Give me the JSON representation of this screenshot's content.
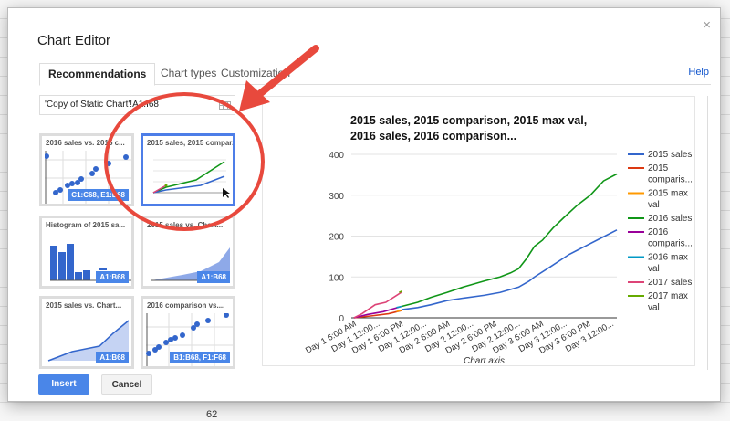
{
  "background": {
    "cell_value": "62"
  },
  "dialog": {
    "title": "Chart Editor",
    "close": "×",
    "help": "Help",
    "tabs": [
      "Recommendations",
      "Chart types",
      "Customization"
    ],
    "range": "'Copy of Static Chart'!A1:I68",
    "thumbnails": [
      {
        "title": "2016 sales vs. 2015 c...",
        "range": "C1:C68, E1:E68",
        "kind": "scatter"
      },
      {
        "title": "2015 sales, 2015 compar...",
        "range": "",
        "kind": "line",
        "selected": true
      },
      {
        "title": "Histogram of 2015 sa...",
        "range": "A1:B68",
        "kind": "histogram"
      },
      {
        "title": "2015 sales vs. Chart...",
        "range": "A1:B68",
        "kind": "column"
      },
      {
        "title": "2015 sales vs. Chart...",
        "range": "A1:B68",
        "kind": "area"
      },
      {
        "title": "2016 comparison vs....",
        "range": "B1:B68, F1:F68",
        "kind": "scatter"
      }
    ],
    "insert": "Insert",
    "cancel": "Cancel"
  },
  "chart_data": {
    "type": "line",
    "title_lines": [
      "2015 sales, 2015 comparison, 2015 max val,",
      "2016 sales, 2016 comparison..."
    ],
    "xlabel": "Chart axis",
    "ylabel": "",
    "ylim": [
      0,
      400
    ],
    "yticks": [
      "0",
      "100",
      "200",
      "300",
      "400"
    ],
    "xlim": [
      0,
      1
    ],
    "categories": [
      "Day 1 6:00 AM",
      "Day 1 12:00...",
      "Day 1 6:00 PM",
      "Day 1 12:00...",
      "Day 2 6:00 AM",
      "Day 2 12:00...",
      "Day 2 6:00 PM",
      "Day 2 12:00...",
      "Day 3 6:00 AM",
      "Day 3 12:00...",
      "Day 3 6:00 PM",
      "Day 3 12:00..."
    ],
    "legend_position": "right",
    "series": [
      {
        "name": "2015 sales",
        "legend": [
          "2015 sales"
        ],
        "color": "#3366cc",
        "points": [
          [
            0.19,
            20
          ],
          [
            0.25,
            25
          ],
          [
            0.3,
            32
          ],
          [
            0.36,
            42
          ],
          [
            0.42,
            48
          ],
          [
            0.5,
            55
          ],
          [
            0.56,
            62
          ],
          [
            0.63,
            75
          ],
          [
            0.67,
            90
          ],
          [
            0.69,
            100
          ],
          [
            0.75,
            125
          ],
          [
            0.82,
            155
          ],
          [
            0.88,
            175
          ],
          [
            0.94,
            195
          ],
          [
            1.0,
            215
          ]
        ]
      },
      {
        "name": "2015 comparison",
        "legend": [
          "2015",
          "comparis..."
        ],
        "color": "#dc3912",
        "points": [
          [
            0.01,
            0
          ],
          [
            0.08,
            5
          ],
          [
            0.14,
            10
          ],
          [
            0.19,
            18
          ]
        ]
      },
      {
        "name": "2015 max val",
        "legend": [
          "2015 max",
          "val"
        ],
        "color": "#ff9900",
        "points": [
          [
            0.17,
            15
          ],
          [
            0.19,
            19
          ]
        ]
      },
      {
        "name": "2016 sales",
        "legend": [
          "2016 sales"
        ],
        "color": "#109618",
        "points": [
          [
            0.19,
            28
          ],
          [
            0.25,
            38
          ],
          [
            0.3,
            50
          ],
          [
            0.36,
            62
          ],
          [
            0.42,
            75
          ],
          [
            0.5,
            90
          ],
          [
            0.56,
            100
          ],
          [
            0.6,
            110
          ],
          [
            0.63,
            120
          ],
          [
            0.66,
            145
          ],
          [
            0.69,
            175
          ],
          [
            0.72,
            190
          ],
          [
            0.76,
            220
          ],
          [
            0.8,
            245
          ],
          [
            0.85,
            275
          ],
          [
            0.9,
            300
          ],
          [
            0.95,
            335
          ],
          [
            1.0,
            352
          ]
        ]
      },
      {
        "name": "2016 comparison",
        "legend": [
          "2016",
          "comparis..."
        ],
        "color": "#990099",
        "points": [
          [
            0.01,
            0
          ],
          [
            0.06,
            8
          ],
          [
            0.12,
            15
          ],
          [
            0.19,
            28
          ]
        ]
      },
      {
        "name": "2016 max val",
        "legend": [
          "2016 max",
          "val"
        ],
        "color": "#0099c6",
        "points": [
          [
            0.17,
            25
          ],
          [
            0.19,
            28
          ]
        ]
      },
      {
        "name": "2017 sales",
        "legend": [
          "2017 sales"
        ],
        "color": "#dd4477",
        "points": [
          [
            0.01,
            0
          ],
          [
            0.04,
            10
          ],
          [
            0.09,
            32
          ],
          [
            0.13,
            38
          ],
          [
            0.19,
            63
          ]
        ]
      },
      {
        "name": "2017 max val",
        "legend": [
          "2017 max",
          "val"
        ],
        "color": "#66aa00",
        "points": [
          [
            0.18,
            62
          ],
          [
            0.19,
            65
          ]
        ]
      }
    ]
  }
}
